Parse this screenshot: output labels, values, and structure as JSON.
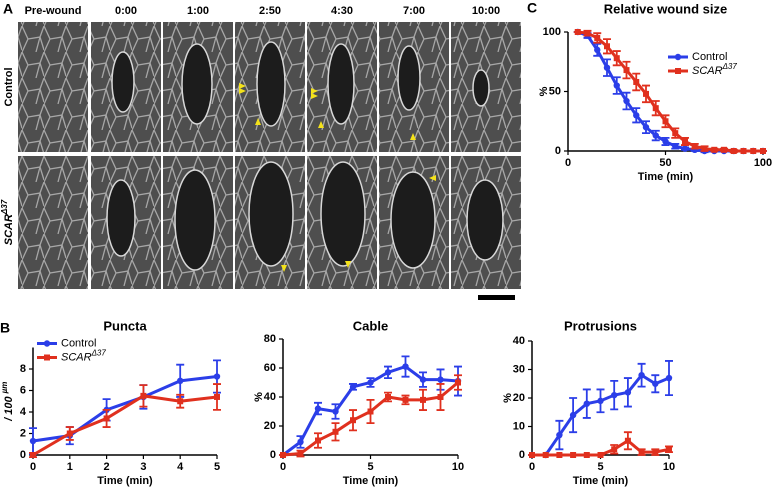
{
  "panel_a": {
    "letter": "A",
    "columns": [
      "Pre-wound",
      "0:00",
      "1:00",
      "2:50",
      "4:30",
      "7:00",
      "10:00"
    ],
    "rows": [
      "Control",
      "SCARΔ37"
    ]
  },
  "panel_b_letter": "B",
  "panel_c_letter": "C",
  "chart_data": [
    {
      "type": "line",
      "title": "Relative wound size",
      "xlabel": "Time (min)",
      "ylabel": "%",
      "legend": "upper right",
      "x": [
        5,
        10,
        15,
        20,
        25,
        30,
        35,
        40,
        45,
        50,
        55,
        60,
        65,
        70,
        75,
        80,
        85,
        90,
        95,
        100
      ],
      "xlim": [
        0,
        100
      ],
      "xticks": [
        0,
        50,
        100
      ],
      "ylim": [
        0,
        100
      ],
      "yticks": [
        0,
        50,
        100
      ],
      "series": [
        {
          "name": "Control",
          "color": "#2b3ee8",
          "marker": "circle",
          "values": [
            100,
            97,
            85,
            70,
            55,
            42,
            30,
            20,
            13,
            8,
            4,
            2,
            1,
            0,
            0,
            0,
            0,
            0,
            0,
            0
          ],
          "errors": [
            0,
            2,
            5,
            7,
            7,
            7,
            6,
            5,
            4,
            3,
            2,
            1,
            1,
            1,
            0,
            0,
            0,
            0,
            0,
            0
          ]
        },
        {
          "name": "SCARΔ37",
          "color": "#e0301e",
          "marker": "square",
          "values": [
            100,
            99,
            95,
            88,
            78,
            68,
            58,
            48,
            36,
            25,
            15,
            8,
            4,
            2,
            1,
            1,
            0,
            0,
            0,
            0
          ],
          "errors": [
            0,
            2,
            4,
            6,
            6,
            7,
            7,
            7,
            6,
            5,
            4,
            3,
            2,
            2,
            1,
            1,
            1,
            0,
            0,
            0
          ]
        }
      ]
    },
    {
      "type": "line",
      "title": "Puncta",
      "xlabel": "Time (min)",
      "ylabel": "/ 100 µm",
      "legend": "upper left",
      "x": [
        0,
        1,
        2,
        3,
        4,
        5
      ],
      "xlim": [
        0,
        5
      ],
      "xticks": [
        0,
        1,
        2,
        3,
        4,
        5
      ],
      "ylim": [
        0,
        10
      ],
      "yticks": [
        0,
        2,
        4,
        6,
        8
      ],
      "series": [
        {
          "name": "Control",
          "color": "#2b3ee8",
          "marker": "circle",
          "values": [
            1.3,
            1.8,
            4.2,
            5.4,
            6.9,
            7.3
          ],
          "errors": [
            1.2,
            0.8,
            1.0,
            1.1,
            1.5,
            1.5
          ]
        },
        {
          "name": "SCARΔ37",
          "color": "#e0301e",
          "marker": "square",
          "values": [
            0,
            2.0,
            3.4,
            5.5,
            5.0,
            5.4
          ],
          "errors": [
            0.2,
            0.6,
            0.8,
            1.0,
            0.6,
            1.2
          ]
        }
      ]
    },
    {
      "type": "line",
      "title": "Cable",
      "xlabel": "Time (min)",
      "ylabel": "%",
      "x": [
        0,
        1,
        2,
        3,
        4,
        5,
        6,
        7,
        8,
        9,
        10
      ],
      "xlim": [
        0,
        10
      ],
      "xticks": [
        0,
        5,
        10
      ],
      "ylim": [
        0,
        80
      ],
      "yticks": [
        0,
        20,
        40,
        60,
        80
      ],
      "series": [
        {
          "name": "Control",
          "color": "#2b3ee8",
          "marker": "circle",
          "values": [
            0,
            9,
            32,
            30,
            47,
            50,
            57,
            61,
            52,
            52,
            51
          ],
          "errors": [
            0,
            4,
            4,
            5,
            2,
            3,
            4,
            7,
            5,
            7,
            10
          ]
        },
        {
          "name": "SCARΔ37",
          "color": "#e0301e",
          "marker": "square",
          "values": [
            0,
            1,
            10,
            16,
            24,
            30,
            40,
            38,
            38,
            40,
            50
          ],
          "errors": [
            0,
            2,
            5,
            6,
            7,
            8,
            3,
            3,
            7,
            9,
            5
          ]
        }
      ]
    },
    {
      "type": "line",
      "title": "Protrusions",
      "xlabel": "Time (min)",
      "ylabel": "%",
      "x": [
        0,
        1,
        2,
        3,
        4,
        5,
        6,
        7,
        8,
        9,
        10
      ],
      "xlim": [
        0,
        10
      ],
      "xticks": [
        0,
        5,
        10
      ],
      "ylim": [
        0,
        40
      ],
      "yticks": [
        0,
        10,
        20,
        30,
        40
      ],
      "series": [
        {
          "name": "Control",
          "color": "#2b3ee8",
          "marker": "circle",
          "values": [
            0,
            0,
            7,
            14,
            18,
            19,
            21,
            22,
            28,
            25,
            27
          ],
          "errors": [
            0,
            0,
            5,
            6,
            5,
            4,
            5,
            5,
            4,
            3,
            6
          ]
        },
        {
          "name": "SCARΔ37",
          "color": "#e0301e",
          "marker": "square",
          "values": [
            0,
            0,
            0,
            0,
            0,
            0,
            2,
            5,
            1,
            1,
            2
          ],
          "errors": [
            0,
            0,
            0,
            0,
            0,
            0,
            1.5,
            3,
            1,
            1,
            1
          ]
        }
      ]
    }
  ]
}
